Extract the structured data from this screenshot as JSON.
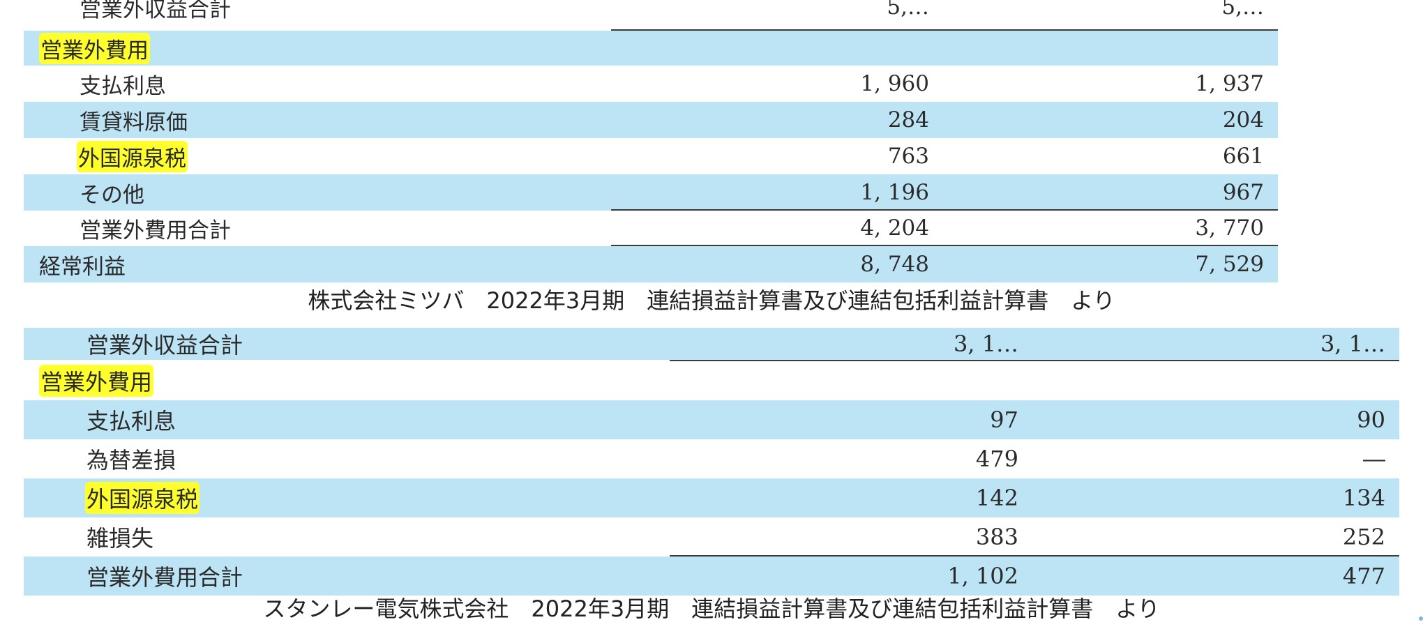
{
  "table1": {
    "header_partial": {
      "label": "営業外収益合計",
      "c1": "5,…",
      "c2": "5,…"
    },
    "section_label": "営業外費用",
    "rows": [
      {
        "label": "支払利息",
        "c1": "1, 960",
        "c2": "1, 937"
      },
      {
        "label": "賃貸料原価",
        "c1": "284",
        "c2": "204"
      },
      {
        "label": "外国源泉税",
        "c1": "763",
        "c2": "661"
      },
      {
        "label": "その他",
        "c1": "1, 196",
        "c2": "967"
      }
    ],
    "total": {
      "label": "営業外費用合計",
      "c1": "4, 204",
      "c2": "3, 770"
    },
    "footer_partial": {
      "label": "経常利益",
      "c1": "8, 748",
      "c2": "7, 529"
    }
  },
  "caption1": "株式会社ミツバ　2022年3月期　連結損益計算書及び連結包括利益計算書　より",
  "table2": {
    "header_partial": {
      "label": "営業外収益合計",
      "c1": "3, 1…",
      "c2": "3, 1…"
    },
    "section_label": "営業外費用",
    "rows": [
      {
        "label": "支払利息",
        "c1": "97",
        "c2": "90"
      },
      {
        "label": "為替差損",
        "c1": "479",
        "c2": "―"
      },
      {
        "label": "外国源泉税",
        "c1": "142",
        "c2": "134"
      },
      {
        "label": "雑損失",
        "c1": "383",
        "c2": "252"
      }
    ],
    "footer_partial": {
      "label": "営業外費用合計",
      "c1": "1, 102",
      "c2": "477"
    }
  },
  "caption2": "スタンレー電気株式会社　2022年3月期　連結損益計算書及び連結包括利益計算書　より",
  "colors": {
    "row_blue": "#bde4f4",
    "highlight": "#ffff2e"
  }
}
